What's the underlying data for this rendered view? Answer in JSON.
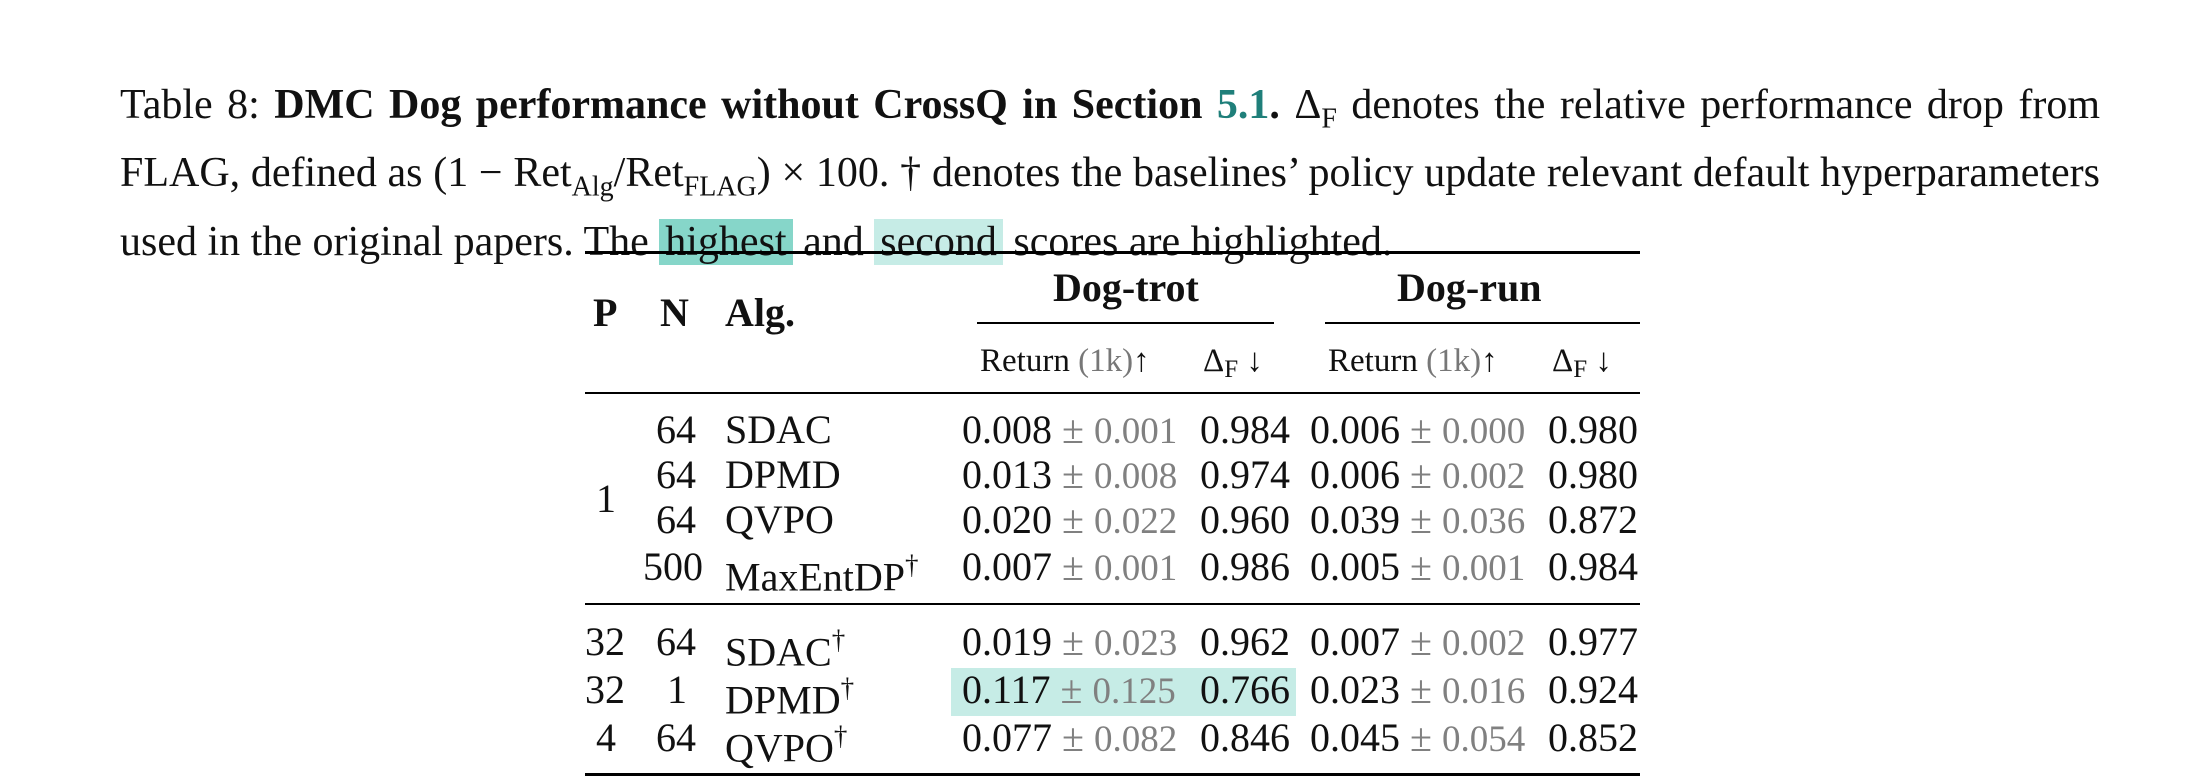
{
  "caption": {
    "label": "Table 8:",
    "bold": "DMC Dog performance without CrossQ in Section",
    "ref": "5.1",
    "bold_end": ".",
    "text1": "denotes the relative performance drop from FLAG, defined as",
    "formula": "(1 − Ret",
    "formula_sub1": "Alg",
    "formula_mid": "/Ret",
    "formula_sub2": "FLAG",
    "formula_end": ") × 100.",
    "text2": "† denotes the baselines’ policy update relevant default hyperparameters used in the original papers. The",
    "highest": "highest",
    "and": "and",
    "second": "second",
    "text3": "scores are highlighted.",
    "delta": "Δ",
    "delta_sub": "F"
  },
  "table": {
    "headers": {
      "p": "P",
      "n": "N",
      "alg": "Alg.",
      "group1": "Dog-trot",
      "group2": "Dog-run",
      "return": "Return",
      "return_unit": "(1k)",
      "up": "↑",
      "delta": "Δ",
      "delta_sub": "F",
      "down": "↓"
    },
    "group1": {
      "p": "1",
      "rows": [
        {
          "n": "64",
          "alg": "SDAC",
          "dag": "",
          "trot_mean": "0.008",
          "trot_std": "0.001",
          "trot_d": "0.984",
          "run_mean": "0.006",
          "run_std": "0.000",
          "run_d": "0.980"
        },
        {
          "n": "64",
          "alg": "DPMD",
          "dag": "",
          "trot_mean": "0.013",
          "trot_std": "0.008",
          "trot_d": "0.974",
          "run_mean": "0.006",
          "run_std": "0.002",
          "run_d": "0.980"
        },
        {
          "n": "64",
          "alg": "QVPO",
          "dag": "",
          "trot_mean": "0.020",
          "trot_std": "0.022",
          "trot_d": "0.960",
          "run_mean": "0.039",
          "run_std": "0.036",
          "run_d": "0.872"
        },
        {
          "n": "500",
          "alg": "MaxEntDP",
          "dag": "†",
          "trot_mean": "0.007",
          "trot_std": "0.001",
          "trot_d": "0.986",
          "run_mean": "0.005",
          "run_std": "0.001",
          "run_d": "0.984"
        }
      ]
    },
    "group2": {
      "rows": [
        {
          "p": "32",
          "n": "64",
          "alg": "SDAC",
          "dag": "†",
          "trot_mean": "0.019",
          "trot_std": "0.023",
          "trot_d": "0.962",
          "run_mean": "0.007",
          "run_std": "0.002",
          "run_d": "0.977"
        },
        {
          "p": "32",
          "n": "1",
          "alg": "DPMD",
          "dag": "†",
          "trot_mean": "0.117",
          "trot_std": "0.125",
          "trot_d": "0.766",
          "run_mean": "0.023",
          "run_std": "0.016",
          "run_d": "0.924"
        },
        {
          "p": "4",
          "n": "64",
          "alg": "QVPO",
          "dag": "†",
          "trot_mean": "0.077",
          "trot_std": "0.082",
          "trot_d": "0.846",
          "run_mean": "0.045",
          "run_std": "0.054",
          "run_d": "0.852"
        }
      ]
    },
    "pm": "±"
  }
}
